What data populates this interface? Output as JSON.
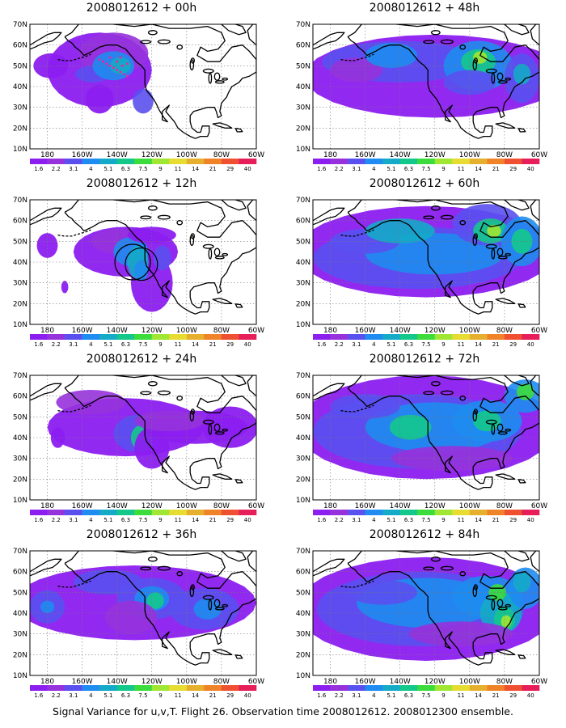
{
  "caption": "Signal Variance for u,v,T. Flight 26. Observation time 2008012612. 2008012300 ensemble.",
  "colors": [
    "#8C1EF0",
    "#9632DC",
    "#5A50F0",
    "#1E8CF0",
    "#14AAC8",
    "#14C88C",
    "#3CDC3C",
    "#A0E632",
    "#E6DC32",
    "#E6AF2D",
    "#F08228",
    "#F05032",
    "#E61E5A"
  ],
  "colorbar_labels": [
    "1.6",
    "2.2",
    "3.1",
    "4",
    "5.1",
    "6.3",
    "7.5",
    "9",
    "11",
    "14",
    "21",
    "29",
    "40"
  ],
  "lat_labels": [
    "70N",
    "60N",
    "50N",
    "40N",
    "30N",
    "20N",
    "10N"
  ],
  "lon_labels": [
    "180",
    "160W",
    "140W",
    "120W",
    "100W",
    "80W",
    "60W"
  ],
  "panels": [
    {
      "title": "2008012612 + 00h"
    },
    {
      "title": "2008012612 + 48h"
    },
    {
      "title": "2008012612 + 12h"
    },
    {
      "title": "2008012612 + 60h"
    },
    {
      "title": "2008012612 + 24h"
    },
    {
      "title": "2008012612 + 72h"
    },
    {
      "title": "2008012612 + 36h"
    },
    {
      "title": "2008012612 + 84h"
    }
  ]
}
